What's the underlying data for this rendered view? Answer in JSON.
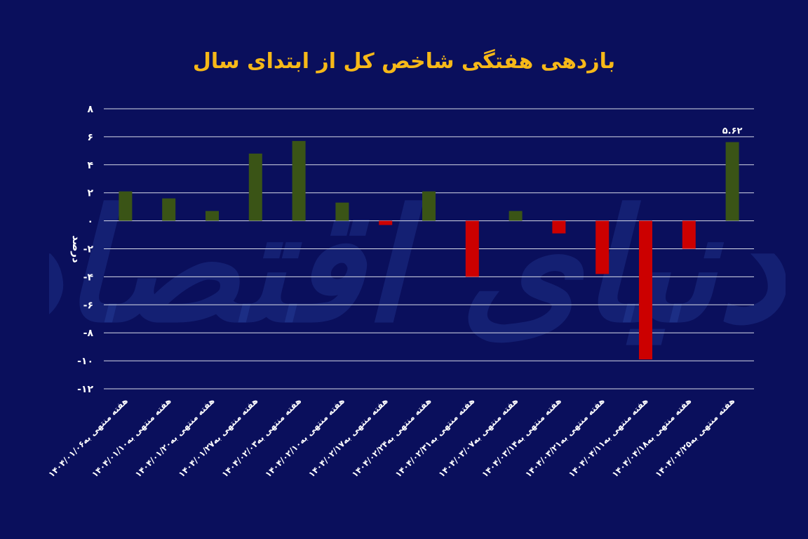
{
  "chart_data": {
    "type": "bar",
    "title": "بازدهی هفتگی شاخص کل از ابتدای سال",
    "ylabel": "درصد",
    "xlabel": "",
    "ylim": [
      -12,
      8
    ],
    "yticks": [
      {
        "value": 8,
        "label": "۸"
      },
      {
        "value": 6,
        "label": "۶"
      },
      {
        "value": 4,
        "label": "۴"
      },
      {
        "value": 2,
        "label": "۲"
      },
      {
        "value": 0,
        "label": "۰"
      },
      {
        "value": -2,
        "label": "-۲"
      },
      {
        "value": -4,
        "label": "-۴"
      },
      {
        "value": -6,
        "label": "-۶"
      },
      {
        "value": -8,
        "label": "-۸"
      },
      {
        "value": -10,
        "label": "-۱۰"
      },
      {
        "value": -12,
        "label": "-۱۲"
      }
    ],
    "grid": true,
    "categories": [
      "هفته منتهی به۱۴۰۴/۰۱/۰۶",
      "هفته منتهی به۱۴۰۴/۰۱/۱۰",
      "هفته منتهی به۱۴۰۴/۰۱/۲۰",
      "هفته منتهی به۱۴۰۴/۰۱/۲۷",
      "هفته منتهی به۱۴۰۴/۰۲/۰۳",
      "هفته منتهی به۱۴۰۴/۰۲/۱۰",
      "هفته منتهی به۱۴۰۴/۰۲/۱۷",
      "هفته منتهی به۱۴۰۴/۰۲/۲۴",
      "هفته منتهی به۱۴۰۴/۰۲/۳۱",
      "هفته منتهی به۱۴۰۴/۰۳/۰۷",
      "هفته منتهی به۱۴۰۴/۰۳/۱۴",
      "هفته منتهی به۱۴۰۴/۰۳/۲۱",
      "هفته منتهی به۱۴۰۴/۰۴/۱۱",
      "هفته منتهی به۱۴۰۴/۰۴/۱۸",
      "هفته منتهی به۱۴۰۴/۰۴/۲۵"
    ],
    "values": [
      2.1,
      1.6,
      0.7,
      4.8,
      5.7,
      1.3,
      -0.3,
      2.1,
      -4.0,
      0.7,
      -0.9,
      -3.8,
      -9.9,
      -2.0,
      5.62
    ],
    "data_labels": {
      "14": "۵.۶۲"
    },
    "colors": {
      "positive": "#3a5416",
      "negative": "#cc0000",
      "grid": "#d8dbe8",
      "text": "#ffffff",
      "title": "#f6b818",
      "background": "#0a0f5c"
    }
  },
  "watermark": "دنیای اقتصاد"
}
